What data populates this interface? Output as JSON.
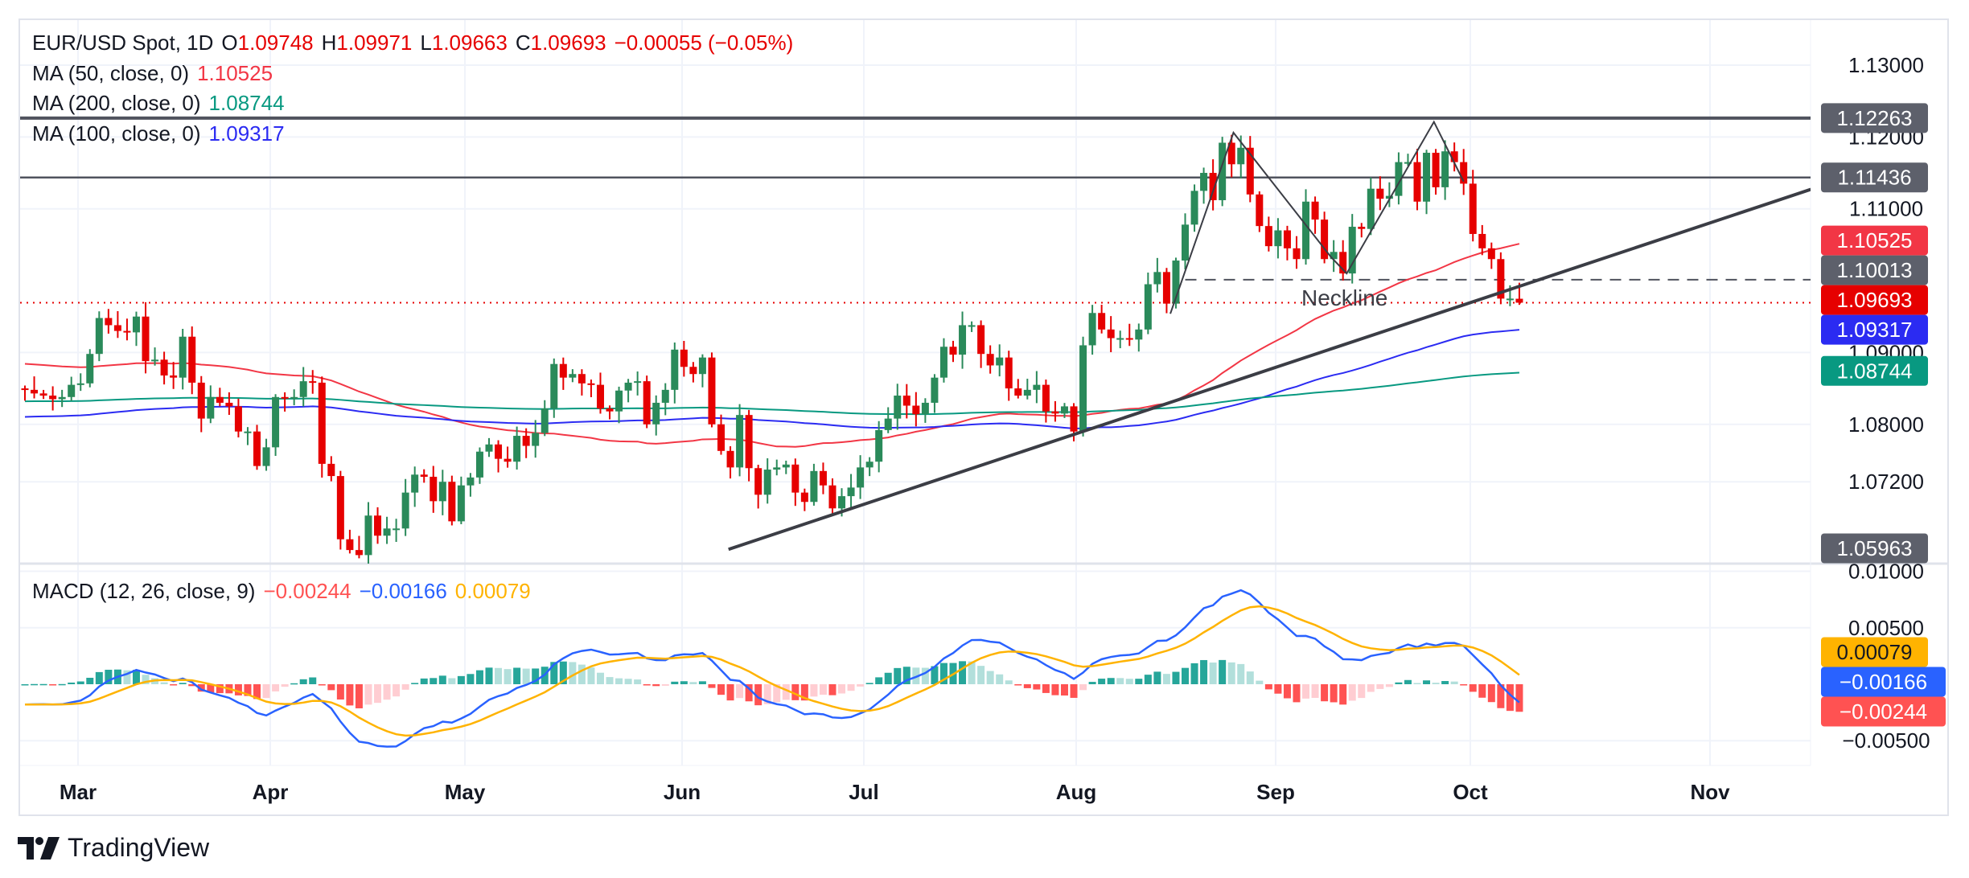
{
  "header": {
    "symbol": "EUR/USD Spot, 1D",
    "o_label": "O",
    "o": "1.09748",
    "h_label": "H",
    "h": "1.09971",
    "l_label": "L",
    "l": "1.09663",
    "c_label": "C",
    "c": "1.09693",
    "change": "−0.00055 (−0.05%)"
  },
  "indicators": [
    {
      "label": "MA (50, close, 0)",
      "value": "1.10525",
      "color": "#f23645"
    },
    {
      "label": "MA (200, close, 0)",
      "value": "1.08744",
      "color": "#089981"
    },
    {
      "label": "MA (100, close, 0)",
      "value": "1.09317",
      "color": "#2b2bf2"
    }
  ],
  "macd": {
    "label": "MACD (12, 26, close, 9)",
    "hist": "−0.00244",
    "hist_color": "#ff5252",
    "macd": "−0.00166",
    "macd_color": "#2962ff",
    "signal": "0.00079",
    "signal_color": "#ffb300"
  },
  "price_axis": {
    "ticks": [
      "1.13000",
      "1.12000",
      "1.11000",
      "1.09000",
      "1.08000",
      "1.07200"
    ],
    "badges": [
      {
        "value": "1.12263",
        "color": "#5d606b",
        "text_color": "#ffffff"
      },
      {
        "value": "1.11436",
        "color": "#5d606b",
        "text_color": "#ffffff"
      },
      {
        "value": "1.10525",
        "color": "#f23645",
        "text_color": "#ffffff"
      },
      {
        "value": "1.10013",
        "color": "#5d606b",
        "text_color": "#ffffff"
      },
      {
        "value": "1.09693",
        "color": "#e60000",
        "text_color": "#ffffff"
      },
      {
        "value": "1.09317",
        "color": "#2b2bf2",
        "text_color": "#ffffff"
      },
      {
        "value": "1.08744",
        "color": "#089981",
        "text_color": "#ffffff"
      },
      {
        "value": "1.05963",
        "color": "#5d606b",
        "text_color": "#ffffff"
      }
    ]
  },
  "macd_axis": {
    "ticks": [
      "0.01000",
      "0.00500",
      "−0.00500"
    ],
    "badges": [
      {
        "value": "0.00079",
        "color": "#ffb300",
        "text_color": "#131722"
      },
      {
        "value": "−0.00166",
        "color": "#2962ff",
        "text_color": "#ffffff"
      },
      {
        "value": "−0.00244",
        "color": "#ff5252",
        "text_color": "#ffffff"
      }
    ]
  },
  "time_axis": [
    "Mar",
    "Apr",
    "May",
    "Jun",
    "Jul",
    "Aug",
    "Sep",
    "Oct",
    "Nov"
  ],
  "annotations": {
    "neckline": "Neckline"
  },
  "brand": "TradingView",
  "chart_data": {
    "type": "candlestick",
    "title": "EUR/USD Spot, 1D",
    "start_date": "2024-02-26",
    "end_date": "2024-10-08",
    "ylim": [
      1.0555,
      1.134
    ],
    "first_open": 1.085,
    "last_ohlc": {
      "open": 1.09748,
      "high": 1.09971,
      "low": 1.09663,
      "close": 1.09693
    },
    "closes": [
      1.0848,
      1.0843,
      1.084,
      1.0835,
      1.0838,
      1.0855,
      1.0857,
      1.0898,
      1.0948,
      1.0938,
      1.093,
      1.0928,
      1.095,
      1.0888,
      1.089,
      1.0868,
      1.0865,
      1.0922,
      1.0858,
      1.0808,
      1.0838,
      1.083,
      1.0825,
      1.079,
      1.079,
      1.0742,
      1.0768,
      1.0838,
      1.0836,
      1.0838,
      1.086,
      1.0858,
      1.0745,
      1.0728,
      1.064,
      1.0625,
      1.0618,
      1.0673,
      1.0645,
      1.0655,
      1.0655,
      1.0705,
      1.073,
      1.0727,
      1.0693,
      1.072,
      1.0665,
      1.0715,
      1.0726,
      1.0762,
      1.0772,
      1.0752,
      1.0748,
      1.0784,
      1.077,
      1.0788,
      1.0822,
      1.0884,
      1.0865,
      1.087,
      1.0857,
      1.0855,
      1.0822,
      1.0818,
      1.0847,
      1.0858,
      1.086,
      1.08,
      1.083,
      1.0848,
      1.0904,
      1.088,
      1.087,
      1.0893,
      1.08,
      1.0763,
      1.074,
      1.0813,
      1.0739,
      1.0702,
      1.0737,
      1.074,
      1.0744,
      1.0705,
      1.0692,
      1.0735,
      1.0715,
      1.0683,
      1.07,
      1.0712,
      1.074,
      1.0748,
      1.0792,
      1.0808,
      1.084,
      1.0826,
      1.0814,
      1.083,
      1.0865,
      1.0908,
      1.0897,
      1.0938,
      1.0938,
      1.0898,
      1.0882,
      1.0893,
      1.085,
      1.084,
      1.0848,
      1.0855,
      1.0818,
      1.0815,
      1.0825,
      1.079,
      1.091,
      1.0955,
      1.0932,
      1.092,
      1.092,
      1.0918,
      1.0932,
      1.0995,
      1.1012,
      1.0968,
      1.1028,
      1.1078,
      1.1125,
      1.115,
      1.1112,
      1.1192,
      1.1162,
      1.1185,
      1.112,
      1.1076,
      1.1048,
      1.107,
      1.1045,
      1.103,
      1.111,
      1.1085,
      1.103,
      1.104,
      1.101,
      1.1075,
      1.1072,
      1.1128,
      1.1114,
      1.1118,
      1.1165,
      1.1165,
      1.111,
      1.1178,
      1.113,
      1.118,
      1.1165,
      1.1135,
      1.1065,
      1.1045,
      1.103,
      1.0975,
      1.0975,
      1.0969
    ],
    "moving_averages": [
      {
        "name": "MA 50",
        "period": 50,
        "last": 1.10525
      },
      {
        "name": "MA 100",
        "period": 100,
        "last": 1.09317
      },
      {
        "name": "MA 200",
        "period": 200,
        "last": 1.08744
      }
    ],
    "horizontal_levels": [
      1.12263,
      1.11436
    ],
    "neckline_level": 1.10013,
    "macd_params": {
      "fast": 12,
      "slow": 26,
      "signal": 9
    },
    "macd_ylim": [
      -0.0075,
      0.0105
    ],
    "x_ticks": [
      "Mar",
      "Apr",
      "May",
      "Jun",
      "Jul",
      "Aug",
      "Sep",
      "Oct",
      "Nov"
    ]
  }
}
